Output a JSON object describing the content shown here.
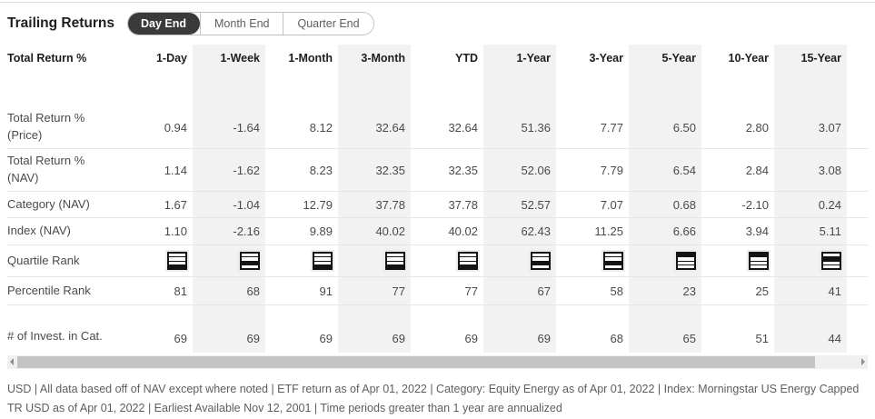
{
  "header": {
    "title": "Trailing Returns",
    "tabs": [
      {
        "label": "Day End",
        "active": true
      },
      {
        "label": "Month End",
        "active": false
      },
      {
        "label": "Quarter End",
        "active": false
      }
    ]
  },
  "table": {
    "label_header": "Total Return %",
    "columns": [
      "1-Day",
      "1-Week",
      "1-Month",
      "3-Month",
      "YTD",
      "1-Year",
      "3-Year",
      "5-Year",
      "10-Year",
      "15-Year"
    ],
    "rows": [
      {
        "label": "Total Return % (Price)",
        "type": "number",
        "values": [
          "0.94",
          "-1.64",
          "8.12",
          "32.64",
          "32.64",
          "51.36",
          "7.77",
          "6.50",
          "2.80",
          "3.07"
        ]
      },
      {
        "label": "Total Return % (NAV)",
        "type": "number",
        "values": [
          "1.14",
          "-1.62",
          "8.23",
          "32.35",
          "32.35",
          "52.06",
          "7.79",
          "6.54",
          "2.84",
          "3.08"
        ]
      },
      {
        "label": "Category (NAV)",
        "type": "number",
        "values": [
          "1.67",
          "-1.04",
          "12.79",
          "37.78",
          "37.78",
          "52.57",
          "7.07",
          "0.68",
          "-2.10",
          "0.24"
        ]
      },
      {
        "label": "Index (NAV)",
        "type": "number",
        "values": [
          "1.10",
          "-2.16",
          "9.89",
          "40.02",
          "40.02",
          "62.43",
          "11.25",
          "6.66",
          "3.94",
          "5.11"
        ]
      },
      {
        "label": "Quartile Rank",
        "type": "quartile",
        "values": [
          4,
          3,
          4,
          4,
          4,
          3,
          3,
          1,
          1,
          2
        ]
      },
      {
        "label": "Percentile Rank",
        "type": "number",
        "values": [
          "81",
          "68",
          "91",
          "77",
          "77",
          "67",
          "58",
          "23",
          "25",
          "41"
        ]
      },
      {
        "label": "# of Invest. in Cat.",
        "type": "number",
        "values": [
          "69",
          "69",
          "69",
          "69",
          "69",
          "69",
          "68",
          "65",
          "51",
          "44"
        ]
      }
    ]
  },
  "scrollbar": {
    "left_arrow_icon": "scroll-left-arrow",
    "right_arrow_icon": "scroll-right-arrow"
  },
  "footer": {
    "disclaimer": "USD | All data based off of NAV except where noted | ETF return as of Apr 01, 2022 | Category: Equity Energy as of Apr 01, 2022 | Index: Morningstar US Energy Capped TR USD as of Apr 01, 2022 | Earliest Available Nov 12, 2001 | Time periods greater than 1 year are annualized"
  },
  "colors": {
    "active_tab_bg": "#3a3a3a",
    "active_tab_text": "#ffffff",
    "column_stripe": "#f2f2f2",
    "row_border": "#e5e5e5",
    "header_text": "#1e1e1e",
    "body_text": "#4a4a4a",
    "footer_text": "#5e5e5e",
    "quartile_fill": "#141414"
  }
}
